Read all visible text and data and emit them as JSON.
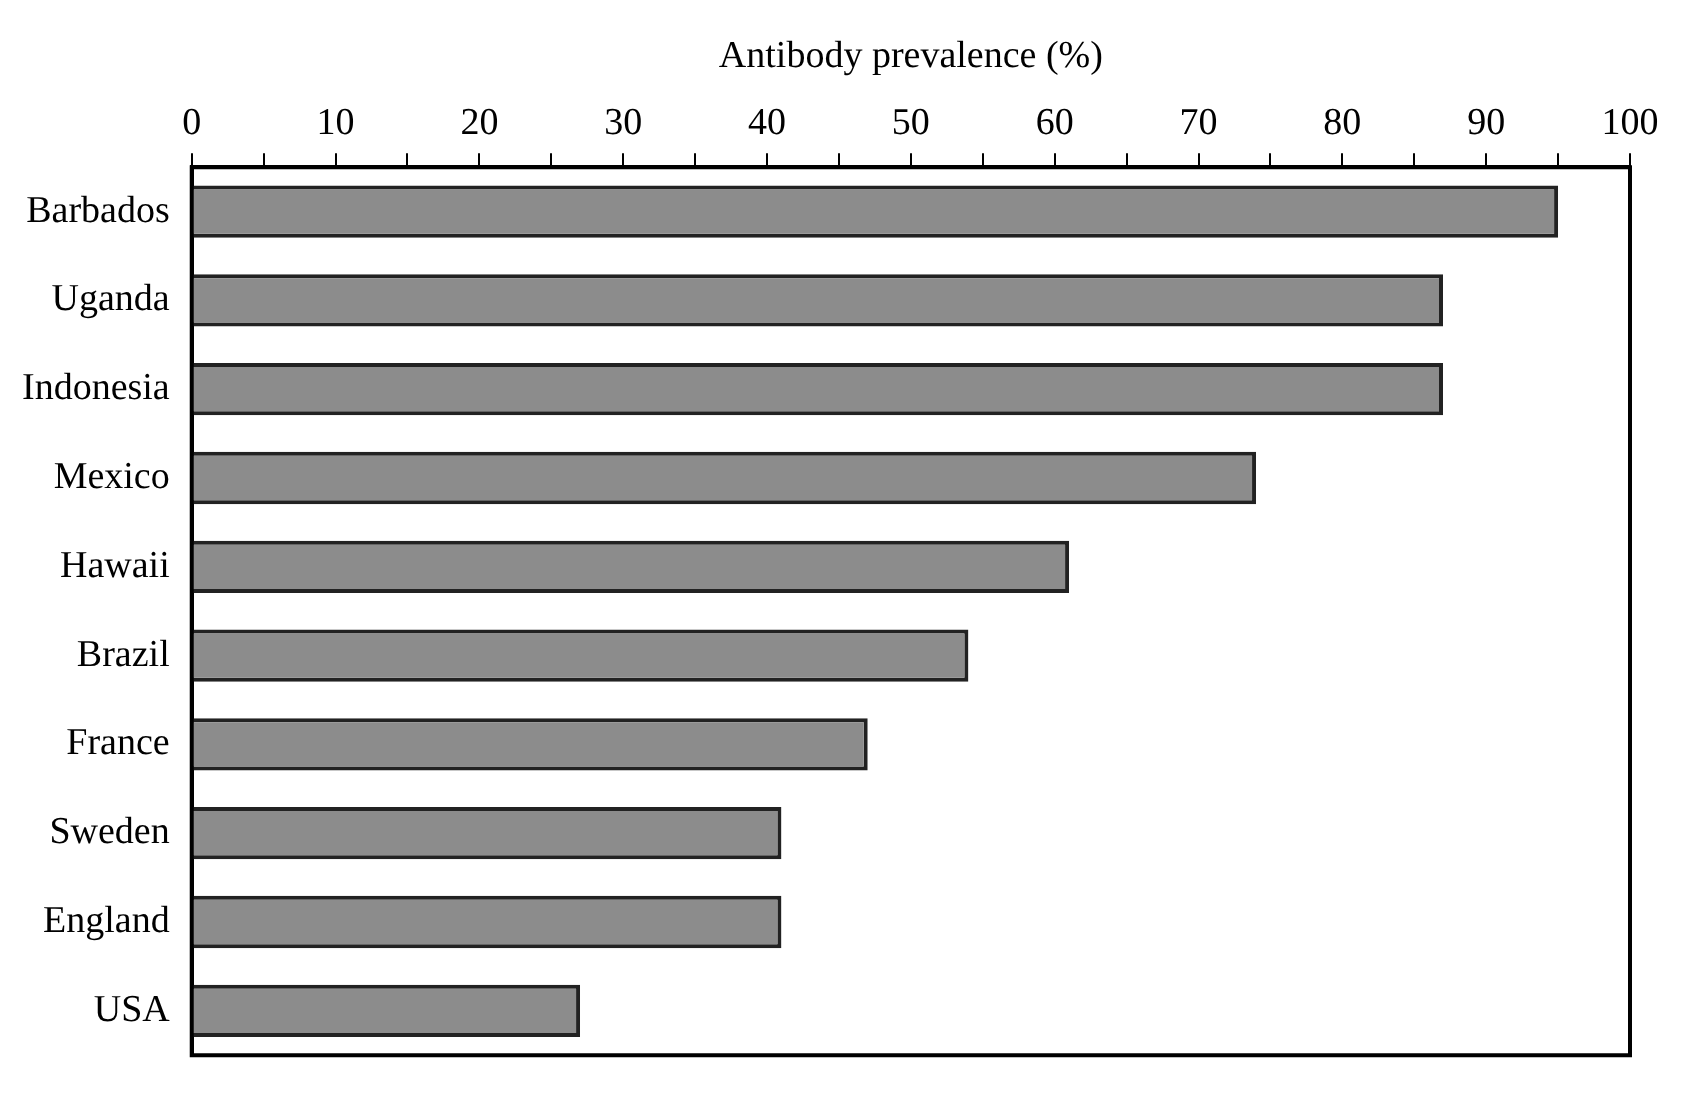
{
  "chart_data": {
    "type": "bar",
    "orientation": "horizontal",
    "xlabel": "Antibody prevalence (%)",
    "categories": [
      "Barbados",
      "Uganda",
      "Indonesia",
      "Mexico",
      "Hawaii",
      "Brazil",
      "France",
      "Sweden",
      "England",
      "USA"
    ],
    "values": [
      95,
      87,
      87,
      74,
      61,
      54,
      47,
      41,
      41,
      27
    ],
    "color": "#8c8c8c",
    "xlim": [
      0,
      100
    ],
    "xticks": [
      0,
      {
        "value": 5,
        "label": null
      },
      10,
      {
        "value": 15,
        "label": null
      },
      20,
      {
        "value": 25,
        "label": null
      },
      30,
      {
        "value": 35,
        "label": null
      },
      40,
      {
        "value": 45,
        "label": null
      },
      50,
      {
        "value": 55,
        "label": null
      },
      60,
      {
        "value": 65,
        "label": null
      },
      70,
      {
        "value": 75,
        "label": null
      },
      80,
      {
        "value": 85,
        "label": null
      },
      90,
      {
        "value": 95,
        "label": null
      },
      100
    ],
    "grid": false,
    "legend": false
  }
}
